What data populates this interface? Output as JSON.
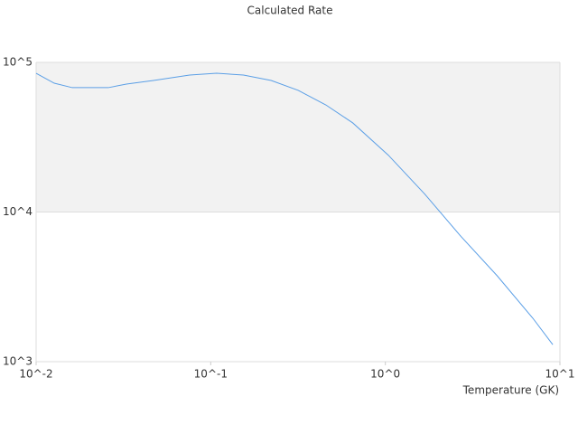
{
  "chart_data": {
    "type": "line",
    "title": "Calculated Rate",
    "x_label": "Temperature (GK)",
    "x": [
      0.01,
      0.0127,
      0.0161,
      0.0259,
      0.0329,
      0.047,
      0.0757,
      0.108,
      0.154,
      0.222,
      0.317,
      0.456,
      0.651,
      1.04,
      1.68,
      2.71,
      4.37,
      7.0,
      9.1
    ],
    "series": [
      {
        "color": "#5b9fe6",
        "values": [
          84600,
          72600,
          67800,
          67800,
          71600,
          75700,
          82300,
          84600,
          82300,
          75700,
          65000,
          52000,
          39400,
          24000,
          13200,
          6870,
          3750,
          1950,
          1300
        ]
      }
    ],
    "xlim": [
      0.01,
      10
    ],
    "ylim": [
      1000,
      100000
    ],
    "xlog": true,
    "ylog": true,
    "xticks": [
      {
        "value": 0.01,
        "label": "10^-2"
      },
      {
        "value": 0.1,
        "label": "10^-1"
      },
      {
        "value": 1,
        "label": "10^0"
      },
      {
        "value": 10,
        "label": "10^1"
      }
    ],
    "yticks": [
      {
        "value": 1000,
        "label": "10^3"
      },
      {
        "value": 10000,
        "label": "10^4"
      },
      {
        "value": 100000,
        "label": "10^5"
      }
    ],
    "bands": true
  }
}
